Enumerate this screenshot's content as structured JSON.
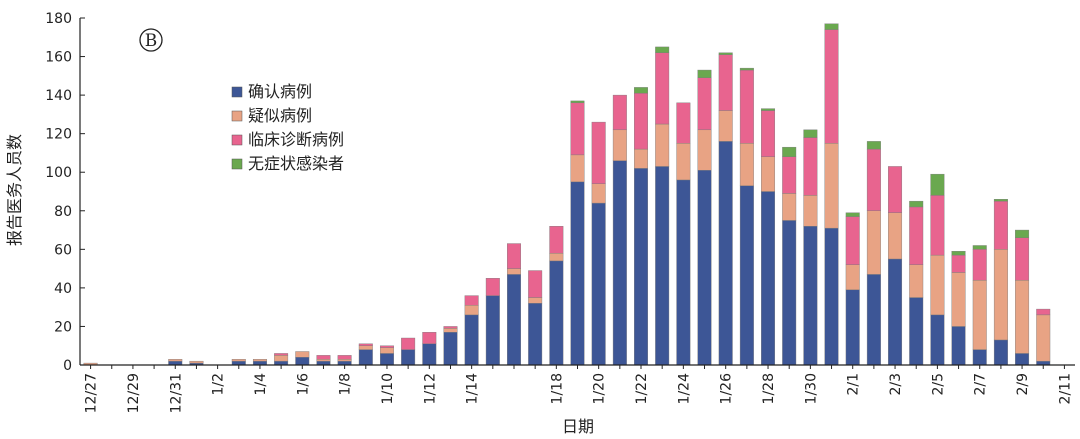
{
  "chart_data": {
    "type": "bar",
    "stacked": true,
    "panel_label": "B",
    "xlabel": "日期",
    "ylabel": "报告医务人员数",
    "ylim": [
      0,
      180
    ],
    "yticks": [
      0,
      20,
      40,
      60,
      80,
      100,
      120,
      140,
      160,
      180
    ],
    "grid": false,
    "legend_position": "upper-left",
    "categories": [
      "12/27",
      "12/28",
      "12/29",
      "12/30",
      "12/31",
      "1/1",
      "1/2",
      "1/3",
      "1/4",
      "1/5",
      "1/6",
      "1/7",
      "1/8",
      "1/9",
      "1/10",
      "1/11",
      "1/12",
      "1/13",
      "1/14",
      "1/15",
      "1/16",
      "1/17",
      "1/18",
      "1/19",
      "1/20",
      "1/21",
      "1/22",
      "1/23",
      "1/24",
      "1/25",
      "1/26",
      "1/27",
      "1/28",
      "1/29",
      "1/30",
      "1/31",
      "2/1",
      "2/2",
      "2/3",
      "2/4",
      "2/5",
      "2/6",
      "2/7",
      "2/8",
      "2/9",
      "2/10",
      "2/11"
    ],
    "xtick_labels": [
      "12/27",
      "12/29",
      "12/31",
      "1/2",
      "1/4",
      "1/6",
      "1/8",
      "1/10",
      "1/12",
      "1/14",
      "1/18",
      "1/20",
      "1/22",
      "1/24",
      "1/26",
      "1/28",
      "1/30",
      "2/1",
      "2/3",
      "2/5",
      "2/7",
      "2/9",
      "2/11"
    ],
    "series": [
      {
        "name": "确认病例",
        "color": "#3d5696",
        "values": [
          0,
          0,
          0,
          0,
          2,
          1,
          0,
          2,
          2,
          2,
          4,
          2,
          2,
          8,
          6,
          8,
          11,
          17,
          26,
          36,
          47,
          32,
          54,
          95,
          84,
          106,
          102,
          103,
          96,
          101,
          116,
          93,
          90,
          75,
          72,
          71,
          39,
          47,
          55,
          35,
          26,
          20,
          8,
          13,
          6,
          2,
          0
        ]
      },
      {
        "name": "疑似病例",
        "color": "#e8a384",
        "values": [
          1,
          0,
          0,
          0,
          1,
          1,
          0,
          1,
          1,
          3,
          3,
          1,
          1,
          2,
          3,
          0,
          0,
          2,
          5,
          0,
          3,
          3,
          4,
          14,
          10,
          16,
          10,
          22,
          19,
          21,
          16,
          22,
          18,
          14,
          16,
          44,
          13,
          33,
          24,
          17,
          31,
          28,
          36,
          47,
          38,
          24,
          0
        ]
      },
      {
        "name": "临床诊断病例",
        "color": "#e8648f",
        "values": [
          0,
          0,
          0,
          0,
          0,
          0,
          0,
          0,
          0,
          1,
          0,
          2,
          2,
          1,
          1,
          6,
          6,
          1,
          5,
          9,
          13,
          14,
          14,
          27,
          32,
          18,
          29,
          37,
          21,
          27,
          29,
          38,
          24,
          19,
          30,
          59,
          25,
          32,
          24,
          30,
          31,
          9,
          16,
          25,
          22,
          3,
          0
        ]
      },
      {
        "name": "无症状感染者",
        "color": "#6aa84f",
        "values": [
          0,
          0,
          0,
          0,
          0,
          0,
          0,
          0,
          0,
          0,
          0,
          0,
          0,
          0,
          0,
          0,
          0,
          0,
          0,
          0,
          0,
          0,
          0,
          1,
          0,
          0,
          3,
          3,
          0,
          4,
          1,
          1,
          1,
          5,
          4,
          3,
          2,
          4,
          0,
          3,
          11,
          2,
          2,
          1,
          4,
          0,
          0
        ]
      }
    ]
  }
}
